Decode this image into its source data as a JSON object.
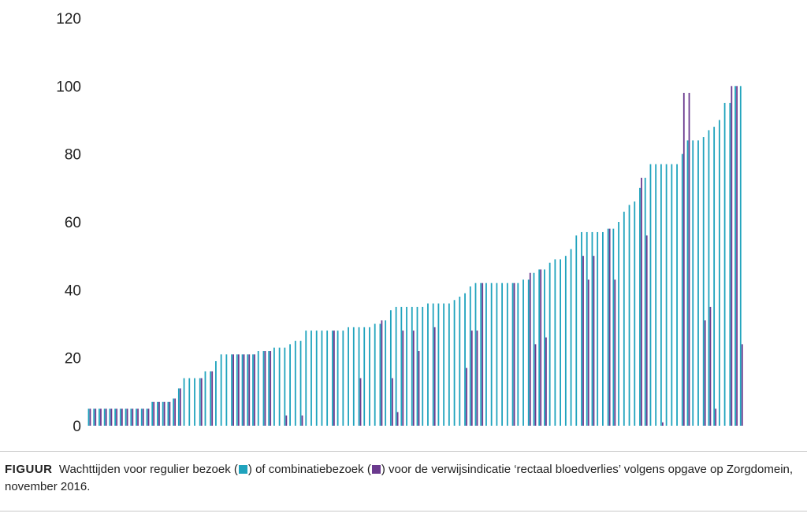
{
  "caption": {
    "label": "FIGUUR",
    "part1": "Wachttijden voor regulier bezoek (",
    "part2": ") of combinatiebezoek (",
    "part3": ") voor de verwijsindicatie ‘rectaal bloedverlies’ volgens opgave op Zorgdomein, november 2016."
  },
  "colors": {
    "regulier": "#1fa3bd",
    "combinatie": "#6b3a8e"
  },
  "chart_data": {
    "type": "bar",
    "ylim": [
      0,
      120
    ],
    "yticks": [
      "0",
      "20",
      "40",
      "60",
      "80",
      "100",
      "120"
    ],
    "grid": false,
    "series": [
      {
        "values": [
          5,
          5,
          5,
          5,
          5,
          5,
          5,
          5,
          5,
          5,
          5,
          5,
          7,
          7,
          7,
          7,
          8,
          11,
          14,
          14,
          14,
          14,
          16,
          16,
          19,
          21,
          21,
          21,
          21,
          21,
          21,
          21,
          22,
          22,
          22,
          23,
          23,
          23,
          24,
          25,
          25,
          28,
          28,
          28,
          28,
          28,
          28,
          28,
          28,
          29,
          29,
          29,
          29,
          29,
          30,
          30,
          31,
          34,
          35,
          35,
          35,
          35,
          35,
          35,
          36,
          36,
          36,
          36,
          36,
          37,
          38,
          39,
          41,
          42,
          42,
          42,
          42,
          42,
          42,
          42,
          42,
          42,
          43,
          43,
          45,
          46,
          46,
          48,
          49,
          49,
          50,
          52,
          56,
          57,
          57,
          57,
          57,
          57,
          58,
          58,
          60,
          63,
          65,
          66,
          70,
          73,
          77,
          77,
          77,
          77,
          77,
          77,
          80,
          84,
          84,
          84,
          85,
          87,
          88,
          90,
          95,
          95,
          100,
          100
        ]
      },
      {
        "values": [
          5,
          5,
          5,
          5,
          5,
          5,
          5,
          5,
          5,
          5,
          5,
          5,
          7,
          7,
          7,
          7,
          8,
          11,
          0,
          0,
          0,
          14,
          0,
          16,
          0,
          0,
          0,
          21,
          21,
          21,
          21,
          21,
          0,
          22,
          22,
          0,
          0,
          3,
          0,
          0,
          3,
          0,
          0,
          0,
          0,
          0,
          28,
          0,
          0,
          0,
          0,
          14,
          0,
          0,
          0,
          31,
          0,
          14,
          4,
          28,
          0,
          28,
          22,
          0,
          0,
          29,
          0,
          0,
          0,
          0,
          0,
          17,
          28,
          28,
          42,
          0,
          0,
          0,
          0,
          0,
          42,
          0,
          0,
          45,
          24,
          46,
          26,
          0,
          0,
          0,
          0,
          0,
          0,
          50,
          43,
          50,
          0,
          0,
          58,
          43,
          0,
          0,
          0,
          0,
          73,
          56,
          0,
          0,
          1,
          0,
          0,
          0,
          98,
          98,
          0,
          0,
          31,
          35,
          5,
          0,
          0,
          100,
          100,
          24
        ]
      }
    ]
  }
}
